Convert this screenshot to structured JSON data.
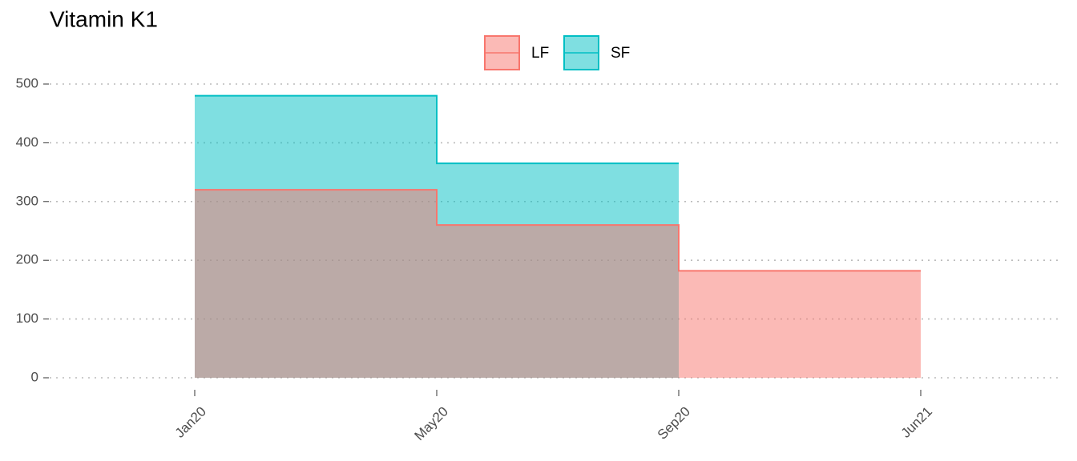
{
  "chart_data": {
    "type": "step-area",
    "title": "Vitamin K1",
    "categories": [
      "Jan20",
      "May20",
      "Sep20",
      "Jun21"
    ],
    "series": [
      {
        "name": "LF",
        "color": "#F8766D",
        "values": [
          320,
          260,
          182,
          182
        ]
      },
      {
        "name": "SF",
        "color": "#00BFC4",
        "values": [
          480,
          365,
          365,
          null
        ]
      }
    ],
    "ylim": [
      0,
      500
    ],
    "yticks": [
      0,
      100,
      200,
      300,
      400,
      500
    ],
    "grid": true,
    "legend": "top"
  }
}
